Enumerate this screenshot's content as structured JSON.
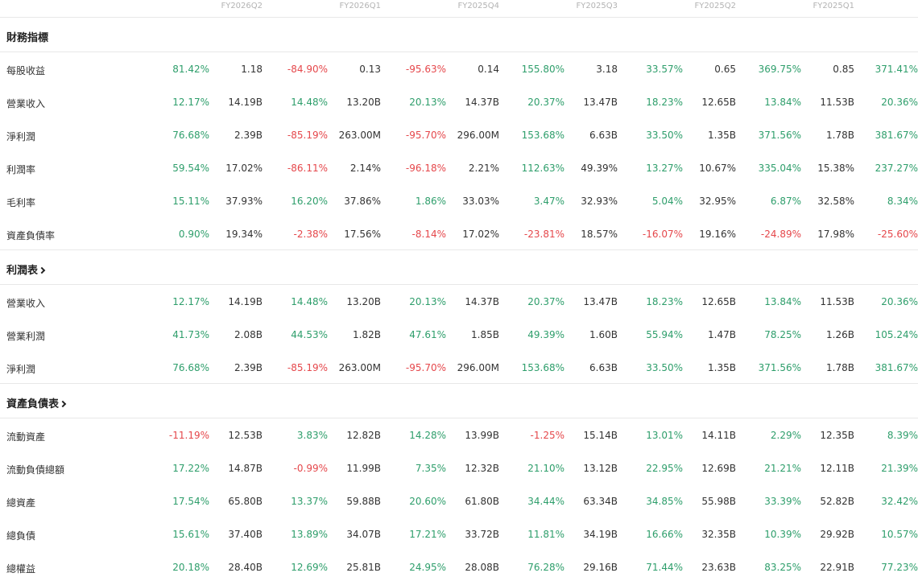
{
  "quarters": [
    "FY2026Q2",
    "FY2026Q1",
    "FY2025Q4",
    "FY2025Q3",
    "FY2025Q2",
    "FY2025Q1"
  ],
  "colors": {
    "positive": "#2e9e6b",
    "negative": "#e5474b"
  },
  "sections": [
    {
      "title": "財務指標",
      "link": false,
      "rows": [
        {
          "label": "每股收益",
          "cells": [
            "81.42%",
            "1.18",
            "-84.90%",
            "0.13",
            "-95.63%",
            "0.14",
            "155.80%",
            "3.18",
            "33.57%",
            "0.65",
            "369.75%",
            "0.85",
            "371.41%"
          ]
        },
        {
          "label": "營業收入",
          "cells": [
            "12.17%",
            "14.19B",
            "14.48%",
            "13.20B",
            "20.13%",
            "14.37B",
            "20.37%",
            "13.47B",
            "18.23%",
            "12.65B",
            "13.84%",
            "11.53B",
            "20.36%"
          ]
        },
        {
          "label": "淨利潤",
          "cells": [
            "76.68%",
            "2.39B",
            "-85.19%",
            "263.00M",
            "-95.70%",
            "296.00M",
            "153.68%",
            "6.63B",
            "33.50%",
            "1.35B",
            "371.56%",
            "1.78B",
            "381.67%"
          ]
        },
        {
          "label": "利潤率",
          "cells": [
            "59.54%",
            "17.02%",
            "-86.11%",
            "2.14%",
            "-96.18%",
            "2.21%",
            "112.63%",
            "49.39%",
            "13.27%",
            "10.67%",
            "335.04%",
            "15.38%",
            "237.27%"
          ]
        },
        {
          "label": "毛利率",
          "cells": [
            "15.11%",
            "37.93%",
            "16.20%",
            "37.86%",
            "1.86%",
            "33.03%",
            "3.47%",
            "32.93%",
            "5.04%",
            "32.95%",
            "6.87%",
            "32.58%",
            "8.34%"
          ]
        },
        {
          "label": "資產負債率",
          "cells": [
            "0.90%",
            "19.34%",
            "-2.38%",
            "17.56%",
            "-8.14%",
            "17.02%",
            "-23.81%",
            "18.57%",
            "-16.07%",
            "19.16%",
            "-24.89%",
            "17.98%",
            "-25.60%"
          ]
        }
      ]
    },
    {
      "title": "利潤表",
      "link": true,
      "rows": [
        {
          "label": "營業收入",
          "cells": [
            "12.17%",
            "14.19B",
            "14.48%",
            "13.20B",
            "20.13%",
            "14.37B",
            "20.37%",
            "13.47B",
            "18.23%",
            "12.65B",
            "13.84%",
            "11.53B",
            "20.36%"
          ]
        },
        {
          "label": "營業利潤",
          "cells": [
            "41.73%",
            "2.08B",
            "44.53%",
            "1.82B",
            "47.61%",
            "1.85B",
            "49.39%",
            "1.60B",
            "55.94%",
            "1.47B",
            "78.25%",
            "1.26B",
            "105.24%"
          ]
        },
        {
          "label": "淨利潤",
          "cells": [
            "76.68%",
            "2.39B",
            "-85.19%",
            "263.00M",
            "-95.70%",
            "296.00M",
            "153.68%",
            "6.63B",
            "33.50%",
            "1.35B",
            "371.56%",
            "1.78B",
            "381.67%"
          ]
        }
      ]
    },
    {
      "title": "資產負債表",
      "link": true,
      "rows": [
        {
          "label": "流動資產",
          "cells": [
            "-11.19%",
            "12.53B",
            "3.83%",
            "12.82B",
            "14.28%",
            "13.99B",
            "-1.25%",
            "15.14B",
            "13.01%",
            "14.11B",
            "2.29%",
            "12.35B",
            "8.39%"
          ]
        },
        {
          "label": "流動負債總額",
          "cells": [
            "17.22%",
            "14.87B",
            "-0.99%",
            "11.99B",
            "7.35%",
            "12.32B",
            "21.10%",
            "13.12B",
            "22.95%",
            "12.69B",
            "21.21%",
            "12.11B",
            "21.39%"
          ]
        },
        {
          "label": "總資產",
          "cells": [
            "17.54%",
            "65.80B",
            "13.37%",
            "59.88B",
            "20.60%",
            "61.80B",
            "34.44%",
            "63.34B",
            "34.85%",
            "55.98B",
            "33.39%",
            "52.82B",
            "32.42%"
          ]
        },
        {
          "label": "總負債",
          "cells": [
            "15.61%",
            "37.40B",
            "13.89%",
            "34.07B",
            "17.21%",
            "33.72B",
            "11.81%",
            "34.19B",
            "16.66%",
            "32.35B",
            "10.39%",
            "29.92B",
            "10.57%"
          ]
        },
        {
          "label": "總權益",
          "cells": [
            "20.18%",
            "28.40B",
            "12.69%",
            "25.81B",
            "24.95%",
            "28.08B",
            "76.28%",
            "29.16B",
            "71.44%",
            "23.63B",
            "83.25%",
            "22.91B",
            "77.23%"
          ]
        }
      ]
    }
  ]
}
